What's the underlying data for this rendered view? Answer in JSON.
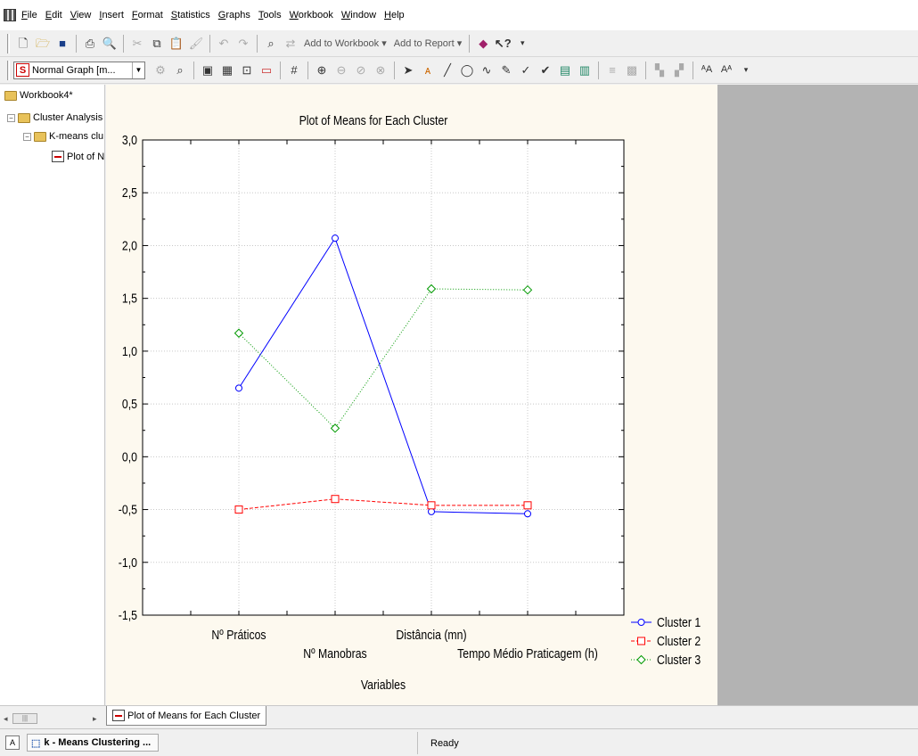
{
  "menu": [
    "File",
    "Edit",
    "View",
    "Insert",
    "Format",
    "Statistics",
    "Graphs",
    "Tools",
    "Workbook",
    "Window",
    "Help"
  ],
  "toolbar": {
    "add_to_workbook": "Add to Workbook ▾",
    "add_to_report": "Add to Report ▾",
    "graph_type": "Normal Graph [m...",
    "graph_type_icon": "S"
  },
  "tree": {
    "root": "Workbook4*",
    "level1": "Cluster Analysis",
    "level2": "K-means clu",
    "level3": "Plot of N"
  },
  "doc_tab": "Plot of Means for Each Cluster",
  "status": {
    "task": "k - Means Clustering ...",
    "text": "Ready"
  },
  "colors": {
    "cluster1": "#0000ff",
    "cluster2": "#ff0000",
    "cluster3": "#009900",
    "graph_bg": "#fdf9ef",
    "gray_panel": "#b3b3b3"
  },
  "chart_data": {
    "type": "line",
    "title": "Plot of Means for Each Cluster",
    "xlabel": "Variables",
    "ylabel": "",
    "categories": [
      "Nº Práticos",
      "Nº Manobras",
      "Distância (mn)",
      "Tempo Médio Praticagem (h)"
    ],
    "ylim": [
      -1.5,
      3.0
    ],
    "yticks": [
      "3,0",
      "2,5",
      "2,0",
      "1,5",
      "1,0",
      "0,5",
      "0,0",
      "-0,5",
      "-1,0",
      "-1,5"
    ],
    "grid": true,
    "legend_position": "bottom-right outside",
    "series": [
      {
        "name": "Cluster 1",
        "values": [
          0.65,
          2.07,
          -0.52,
          -0.54
        ],
        "marker": "circle",
        "line": "solid"
      },
      {
        "name": "Cluster 2",
        "values": [
          -0.5,
          -0.4,
          -0.46,
          -0.46
        ],
        "marker": "square",
        "line": "dashed"
      },
      {
        "name": "Cluster 3",
        "values": [
          1.17,
          0.27,
          1.59,
          1.58
        ],
        "marker": "diamond",
        "line": "dotted"
      }
    ]
  }
}
